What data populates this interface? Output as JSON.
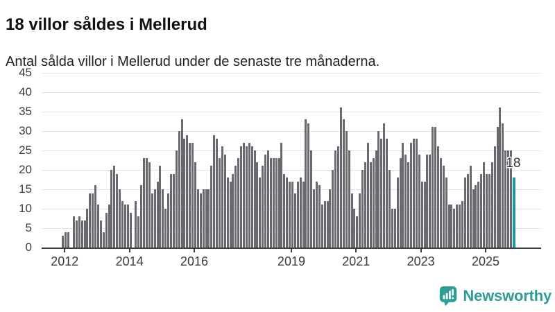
{
  "header": {
    "title": "18 villor såldes i Mellerud",
    "subtitle": "Antal sålda villor i Mellerud under de senaste tre månaderna."
  },
  "chart_data": {
    "type": "bar",
    "title": "18 villor såldes i Mellerud",
    "subtitle": "Antal sålda villor i Mellerud under de senaste tre månaderna.",
    "ylabel": "",
    "xlabel": "",
    "ylim": [
      0,
      45
    ],
    "y_ticks": [
      0,
      5,
      10,
      15,
      20,
      25,
      30,
      35,
      40,
      45
    ],
    "grid": true,
    "legend": false,
    "x_tick_labels": [
      "2012",
      "2014",
      "2016",
      "2019",
      "2021",
      "2023",
      "2025"
    ],
    "x_tick_bar_index": [
      1,
      25,
      49,
      85,
      109,
      133,
      157
    ],
    "bar_color": "#696970",
    "values": [
      3,
      4,
      4,
      0,
      8,
      7,
      8,
      7,
      7,
      10,
      14,
      14,
      16,
      11,
      7,
      4,
      9,
      11,
      20,
      21,
      19,
      15,
      12,
      11,
      11,
      9,
      0,
      12,
      8,
      16,
      23,
      23,
      22,
      14,
      15,
      17,
      21,
      15,
      10,
      14,
      19,
      19,
      25,
      30,
      33,
      28,
      29,
      27,
      27,
      22,
      15,
      14,
      15,
      15,
      15,
      21,
      29,
      28,
      23,
      26,
      24,
      18,
      17,
      19,
      21,
      23,
      26,
      27,
      26,
      27,
      26,
      25,
      22,
      18,
      21,
      24,
      25,
      23,
      23,
      23,
      23,
      27,
      19,
      18,
      17,
      17,
      14,
      17,
      18,
      17,
      33,
      32,
      25,
      15,
      17,
      16,
      11,
      12,
      12,
      15,
      20,
      25,
      26,
      36,
      33,
      30,
      25,
      14,
      10,
      8,
      14,
      20,
      22,
      27,
      22,
      23,
      25,
      30,
      28,
      32,
      28,
      20,
      10,
      10,
      18,
      23,
      27,
      24,
      22,
      27,
      28,
      28,
      24,
      17,
      17,
      24,
      24,
      31,
      31,
      26,
      23,
      21,
      18,
      11,
      11,
      10,
      11,
      11,
      12,
      18,
      19,
      21,
      15,
      16,
      17,
      19,
      22,
      19,
      19,
      22,
      26,
      31,
      36,
      32,
      25,
      25,
      25,
      18
    ],
    "highlight": {
      "last_bar": true,
      "value": 18,
      "label": "18",
      "color": "#1b9b9e"
    }
  },
  "annotation": {
    "last_value_label": "18"
  },
  "footer": {
    "brand": "Newsworthy",
    "brand_color": "#2f9c98",
    "logo_icon": "newsworthy-speech-bubble-barchart-icon"
  },
  "colors": {
    "background": "#ffffff",
    "bar": "#696970",
    "highlight": "#1b9b9e",
    "gridline": "#e1e1e1",
    "axis": "#3d3d3d",
    "text": "#111111"
  }
}
